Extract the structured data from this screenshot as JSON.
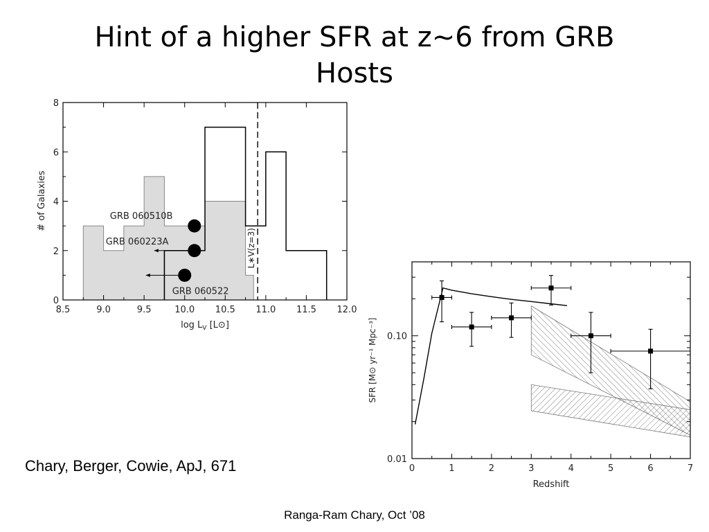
{
  "slide": {
    "title_line1": "Hint of a higher SFR at z~6 from GRB",
    "title_line2": "Hosts",
    "citation": "Chary, Berger, Cowie, ApJ, 671",
    "footer": "Ranga-Ram Chary, Oct ’08"
  },
  "chart_data": [
    {
      "type": "bar",
      "subtype": "histogram",
      "xlabel": "log L",
      "xlabel_sub": "V",
      "xlabel_unit": "[L⊙]",
      "ylabel": "# of Galaxies",
      "xlim": [
        8.5,
        12.0
      ],
      "ylim": [
        0,
        8
      ],
      "x_ticks": [
        "8.5",
        "9.0",
        "9.5",
        "10.0",
        "10.5",
        "11.0",
        "11.5",
        "12.0"
      ],
      "y_ticks": [
        "0",
        "2",
        "4",
        "6",
        "8"
      ],
      "series": [
        {
          "fill": "#dcdcdc",
          "bins": [
            {
              "x0": 8.75,
              "x1": 9.0,
              "value": 3
            },
            {
              "x0": 9.0,
              "x1": 9.25,
              "value": 2
            },
            {
              "x0": 9.25,
              "x1": 9.5,
              "value": 3
            },
            {
              "x0": 9.5,
              "x1": 9.75,
              "value": 5
            },
            {
              "x0": 9.75,
              "x1": 10.0,
              "value": 3
            },
            {
              "x0": 10.0,
              "x1": 10.25,
              "value": 3
            },
            {
              "x0": 10.25,
              "x1": 10.5,
              "value": 4
            },
            {
              "x0": 10.5,
              "x1": 10.75,
              "value": 4
            },
            {
              "x0": 10.75,
              "x1": 10.85,
              "value": 1
            }
          ]
        },
        {
          "fill": "none",
          "bins": [
            {
              "x0": 9.75,
              "x1": 10.25,
              "value": 2
            },
            {
              "x0": 10.25,
              "x1": 10.75,
              "value": 7
            },
            {
              "x0": 10.75,
              "x1": 11.0,
              "value": 3
            },
            {
              "x0": 11.0,
              "x1": 11.25,
              "value": 6
            },
            {
              "x0": 11.25,
              "x1": 11.75,
              "value": 2
            }
          ]
        }
      ],
      "points": [
        {
          "name": "GRB 060510B",
          "x": 10.12,
          "y": 3,
          "upper_limit": false
        },
        {
          "name": "GRB 060223A",
          "x": 10.12,
          "y": 2,
          "upper_limit": true
        },
        {
          "name": "GRB 060522",
          "x": 10.0,
          "y": 1,
          "upper_limit": true
        }
      ],
      "vline": {
        "x": 10.9,
        "label": "L∗V(z=3)"
      }
    },
    {
      "type": "line",
      "xlabel": "Redshift",
      "ylabel": "SFR [M⊙ yr⁻¹ Mpc⁻³]",
      "xlim": [
        0,
        7
      ],
      "ylim": [
        0.01,
        0.4
      ],
      "yscale": "log",
      "x_ticks": [
        "0",
        "1",
        "2",
        "3",
        "4",
        "5",
        "6",
        "7"
      ],
      "y_ticks": [
        "0.01",
        "0.10"
      ],
      "curve": {
        "x": [
          0.08,
          0.3,
          0.5,
          0.78,
          1.0,
          1.5,
          2.0,
          2.5,
          3.0,
          3.5,
          3.9
        ],
        "y": [
          0.019,
          0.045,
          0.105,
          0.245,
          0.235,
          0.22,
          0.208,
          0.198,
          0.19,
          0.182,
          0.176
        ]
      },
      "data_points": [
        {
          "x": 0.75,
          "y": 0.205,
          "xlo": 0.5,
          "xhi": 1.0,
          "ylo": 0.13,
          "yhi": 0.28
        },
        {
          "x": 1.5,
          "y": 0.118,
          "xlo": 1.0,
          "xhi": 2.0,
          "ylo": 0.082,
          "yhi": 0.155
        },
        {
          "x": 2.5,
          "y": 0.14,
          "xlo": 2.0,
          "xhi": 3.0,
          "ylo": 0.097,
          "yhi": 0.185
        },
        {
          "x": 3.5,
          "y": 0.245,
          "xlo": 3.0,
          "xhi": 4.0,
          "ylo": 0.178,
          "yhi": 0.31
        },
        {
          "x": 4.5,
          "y": 0.1,
          "xlo": 4.0,
          "xhi": 5.0,
          "ylo": 0.05,
          "yhi": 0.155
        },
        {
          "x": 6.0,
          "y": 0.075,
          "xlo": 5.0,
          "xhi": 7.0,
          "ylo": 0.037,
          "yhi": 0.113
        }
      ],
      "bands": [
        {
          "style": "hatched",
          "upper": [
            [
              3.0,
              0.175
            ],
            [
              7.0,
              0.029
            ]
          ],
          "lower": [
            [
              3.0,
              0.07
            ],
            [
              7.0,
              0.0155
            ]
          ]
        },
        {
          "style": "hatched",
          "upper": [
            [
              3.0,
              0.04
            ],
            [
              7.0,
              0.025
            ]
          ],
          "lower": [
            [
              3.0,
              0.0245
            ],
            [
              7.0,
              0.015
            ]
          ]
        }
      ]
    }
  ]
}
